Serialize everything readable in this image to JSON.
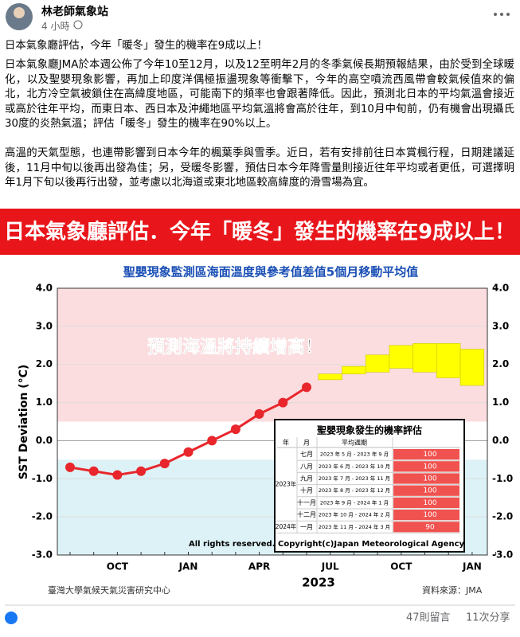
{
  "post": {
    "author": "林老師氣象站",
    "time": "4 小時",
    "headline": "日本氣象廳評估，今年「暖冬」發生的機率在9成以上！",
    "paragraphs": [
      "日本氣象廳JMA於本週公佈了今年10至12月，以及12至明年2月的冬季氣候長期預報結果，由於受到全球暖化，以及聖嬰現象影響，再加上印度洋偶極振盪現象等衝擊下，今年的高空噴流西風帶會較氣候值來的偏北，北方冷空氣被鎖住在高緯度地區，可能南下的頻率也會跟著降低。因此，預測北日本的平均氣溫會接近或高於往年平均，而東日本、西日本及沖繩地區平均氣溫將會高於往年，到10月中旬前，仍有機會出現攝氏30度的炎熱氣溫；評估「暖冬」發生的機率在90%以上。",
      "高溫的天氣型態，也連帶影響到日本今年的楓葉季與雪季。近日，若有安排前往日本賞楓行程，日期建議延後，11月中旬以後再出發為佳；另，受暖冬影響，預估日本今年降雪量則接近往年平均或者更低，可選擇明年1月下旬以後再行出發，並考慮以北海道或東北地區較高緯度的滑雪場為宜。"
    ],
    "image": {
      "banner": "日本氣象廳評估．今年「暖冬」發生的機率在9成以上！",
      "chart": {
        "type": "line",
        "title": "聖嬰現象監測區海面溫度與參考值差值5個月移動平均值",
        "y_label": "SST Deviation (°C)",
        "x_label": "2023",
        "annotation": "預測海溫將持續增高！",
        "copyright": "All rights reserved. Copyright(c)Japan Meteorological Agency",
        "categories": [
          null,
          null,
          "OCT",
          null,
          null,
          "JAN",
          null,
          null,
          "APR",
          null,
          null,
          "JUL",
          null,
          null,
          "OCT",
          null,
          null,
          "JAN",
          null
        ],
        "series": [
          {
            "color": "#e8262b",
            "values": [
              -0.7,
              -0.8,
              -0.9,
              -0.8,
              -0.6,
              -0.3,
              0.0,
              0.3,
              0.7,
              1.0,
              1.4,
              null,
              null,
              null,
              null,
              null,
              null,
              null,
              null
            ]
          }
        ],
        "forecast": {
          "color": "#ffff00",
          "low": [
            null,
            null,
            null,
            null,
            null,
            null,
            null,
            null,
            null,
            null,
            null,
            1.6,
            1.75,
            1.8,
            1.9,
            1.8,
            1.65,
            1.45,
            null
          ],
          "high": [
            null,
            null,
            null,
            null,
            null,
            null,
            null,
            null,
            null,
            null,
            null,
            1.75,
            1.95,
            2.25,
            2.5,
            2.55,
            2.55,
            2.4,
            null
          ]
        },
        "bands": [
          {
            "from": 0.5,
            "to": 4,
            "color": "#fbdcdf"
          },
          {
            "from": -3,
            "to": -0.5,
            "color": "#dcf2f6"
          }
        ],
        "ylim": [
          -3,
          4
        ],
        "yticks": [
          {
            "value": -3,
            "label": "-3.0"
          },
          {
            "value": -2,
            "label": "-2.0"
          },
          {
            "value": -1,
            "label": "-1.0"
          },
          {
            "value": 0,
            "label": "0.0"
          },
          {
            "value": 1,
            "label": "1.0"
          },
          {
            "value": 2,
            "label": "2.0"
          },
          {
            "value": 3,
            "label": "3.0"
          },
          {
            "value": 4,
            "label": "4.0"
          }
        ],
        "grid": true,
        "table": {
          "title": "聖嬰現象發生的機率評估",
          "header": [
            "年",
            "月",
            "平均週期"
          ],
          "rows": [
            {
              "year": "2023年",
              "month": "七月",
              "period": "2023 年 5 月 - 2023 年 9 月",
              "value": 100
            },
            {
              "year": null,
              "month": "八月",
              "period": "2023 年 6 月 - 2023 年 10 月",
              "value": 100
            },
            {
              "year": null,
              "month": "九月",
              "period": "2023 年 7 月 - 2023 年 11 月",
              "value": 100
            },
            {
              "year": null,
              "month": "十月",
              "period": "2023 年 8 月 - 2023 年 12 月",
              "value": 100
            },
            {
              "year": null,
              "month": "十一月",
              "period": "2023 年 9 月 - 2024 年 1 月",
              "value": 100
            },
            {
              "year": null,
              "month": "十二月",
              "period": "2023 年 10 月 - 2024 年 2 月",
              "value": 100
            },
            {
              "year": "2024年",
              "month": "一月",
              "period": "2023 年 11 月 - 2024 年 3 月",
              "value": 90
            }
          ]
        }
      },
      "credit_left": "臺灣大學氣候天氣災害研究中心",
      "credit_right": "資料來源：JMA"
    },
    "comments": "47則留言",
    "shares": "11次分享"
  }
}
